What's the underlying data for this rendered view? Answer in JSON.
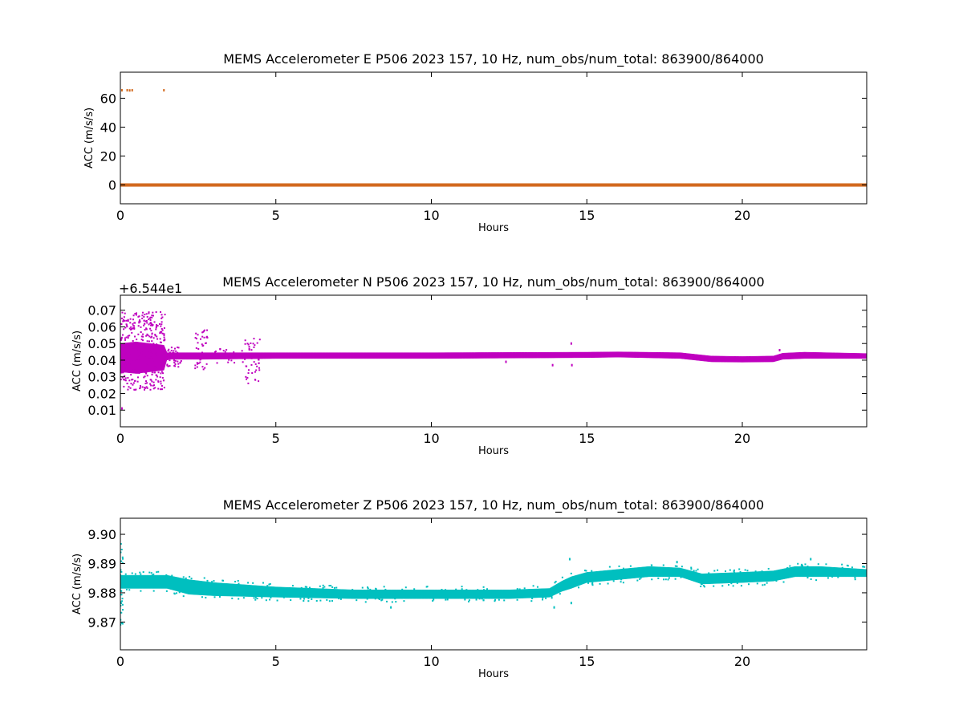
{
  "chart_data": [
    {
      "type": "scatter",
      "title": "MEMS Accelerometer E P506 2023 157, 10 Hz, num_obs/num_total: 863900/864000",
      "xlabel": "Hours",
      "ylabel": "ACC (m/s/s)",
      "xlim": [
        0,
        24
      ],
      "ylim": [
        -13,
        78
      ],
      "xticks": [
        0,
        5,
        10,
        15,
        20
      ],
      "yticks": [
        0,
        20,
        40,
        60
      ],
      "ytick_labels": [
        "0",
        "20",
        "40",
        "60"
      ],
      "offset_text": "",
      "color": "#d2691e",
      "band": {
        "x": [
          0,
          24
        ],
        "lo": [
          -0.3,
          -0.3
        ],
        "hi": [
          0.3,
          0.3
        ]
      },
      "points": [
        [
          0.05,
          65.5
        ],
        [
          0.22,
          65.5
        ],
        [
          0.38,
          65.5
        ],
        [
          1.4,
          65.5
        ],
        [
          0.3,
          65.4
        ]
      ]
    },
    {
      "type": "scatter",
      "title": "MEMS Accelerometer N P506 2023 157, 10 Hz, num_obs/num_total: 863900/864000",
      "xlabel": "Hours",
      "ylabel": "ACC (m/s/s)",
      "xlim": [
        0,
        24
      ],
      "ylim": [
        0.0,
        0.079
      ],
      "xticks": [
        0,
        5,
        10,
        15,
        20
      ],
      "yticks": [
        0.01,
        0.02,
        0.03,
        0.04,
        0.05,
        0.06,
        0.07
      ],
      "ytick_labels": [
        "0.01",
        "0.02",
        "0.03",
        "0.04",
        "0.05",
        "0.06",
        "0.07"
      ],
      "offset_text": "+6.544e1",
      "color": "#bf00bf",
      "band": {
        "x": [
          0,
          0.5,
          1.4,
          1.5,
          2.6,
          5.0,
          10.0,
          15.0,
          16.0,
          18.0,
          19.0,
          20.0,
          21.0,
          21.3,
          22.0,
          24.0
        ],
        "lo": [
          0.033,
          0.032,
          0.034,
          0.0405,
          0.0405,
          0.041,
          0.041,
          0.0415,
          0.0418,
          0.041,
          0.039,
          0.0388,
          0.039,
          0.0405,
          0.041,
          0.041
        ],
        "hi": [
          0.05,
          0.051,
          0.049,
          0.0445,
          0.0445,
          0.0445,
          0.0445,
          0.0448,
          0.045,
          0.0445,
          0.0425,
          0.0422,
          0.0425,
          0.0442,
          0.0448,
          0.044
        ]
      },
      "scatter_bursts": [
        {
          "x": [
            0.0,
            1.45
          ],
          "lo": 0.022,
          "hi": 0.069,
          "n": 380
        },
        {
          "x": [
            1.5,
            2.0
          ],
          "lo": 0.036,
          "hi": 0.049,
          "n": 40
        },
        {
          "x": [
            2.4,
            2.8
          ],
          "lo": 0.034,
          "hi": 0.059,
          "n": 45
        },
        {
          "x": [
            3.0,
            4.0
          ],
          "lo": 0.038,
          "hi": 0.047,
          "n": 40
        },
        {
          "x": [
            4.0,
            4.5
          ],
          "lo": 0.026,
          "hi": 0.054,
          "n": 45
        }
      ],
      "points": [
        [
          0.05,
          0.011
        ],
        [
          0.1,
          0.064
        ],
        [
          13.9,
          0.037
        ],
        [
          14.5,
          0.05
        ],
        [
          14.52,
          0.037
        ],
        [
          12.4,
          0.039
        ],
        [
          21.2,
          0.046
        ]
      ]
    },
    {
      "type": "scatter",
      "title": "MEMS Accelerometer Z P506 2023 157, 10 Hz, num_obs/num_total: 863900/864000",
      "xlabel": "Hours",
      "ylabel": "ACC (m/s/s)",
      "xlim": [
        0,
        24
      ],
      "ylim": [
        9.8605,
        9.9055
      ],
      "xticks": [
        0,
        5,
        10,
        15,
        20
      ],
      "yticks": [
        9.87,
        9.88,
        9.89,
        9.9
      ],
      "ytick_labels": [
        "9.87",
        "9.88",
        "9.89",
        "9.90"
      ],
      "offset_text": "",
      "color": "#00bfbf",
      "band": {
        "x": [
          0,
          1.5,
          2.2,
          3.0,
          5.0,
          7.5,
          10.0,
          12.5,
          13.8,
          14.2,
          14.5,
          15.0,
          16.0,
          17.0,
          18.0,
          18.7,
          20.0,
          21.0,
          21.7,
          22.5,
          24.0
        ],
        "lo": [
          9.8815,
          9.8815,
          9.8795,
          9.879,
          9.8785,
          9.878,
          9.878,
          9.878,
          9.8785,
          9.8805,
          9.8815,
          9.8835,
          9.8845,
          9.8855,
          9.8855,
          9.883,
          9.8835,
          9.884,
          9.8855,
          9.8855,
          9.8855
        ],
        "hi": [
          9.886,
          9.886,
          9.8845,
          9.8835,
          9.882,
          9.881,
          9.881,
          9.881,
          9.8815,
          9.884,
          9.8855,
          9.887,
          9.888,
          9.889,
          9.8885,
          9.8865,
          9.887,
          9.8875,
          9.889,
          9.889,
          9.888
        ]
      },
      "scatter_bursts": [
        {
          "x": [
            0.0,
            0.08
          ],
          "lo": 9.867,
          "hi": 9.898,
          "n": 30
        },
        {
          "x": [
            0.1,
            24.0
          ],
          "lo": -0.0012,
          "hi": 0.0012,
          "n": 260,
          "relative": true
        }
      ],
      "points": [
        [
          14.45,
          9.8915
        ],
        [
          14.5,
          9.8765
        ],
        [
          13.95,
          9.875
        ],
        [
          8.7,
          9.875
        ],
        [
          17.9,
          9.8905
        ],
        [
          22.2,
          9.8915
        ]
      ]
    }
  ]
}
